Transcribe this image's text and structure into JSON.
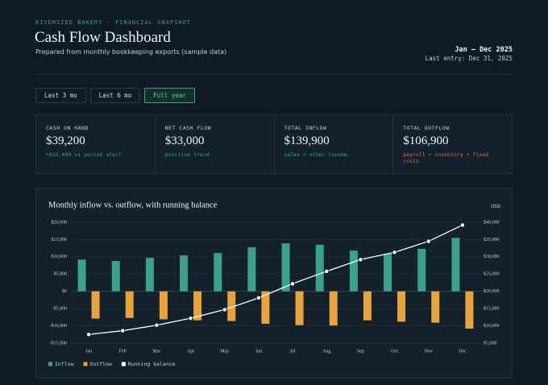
{
  "header": {
    "eyebrow": "RIVERSIDE BAKERY · FINANCIAL SNAPSHOT",
    "title": "Cash Flow Dashboard",
    "subtitle": "Prepared from monthly bookkeeping exports (sample data)",
    "period": "Jan — Dec 2025",
    "last_entry": "Last entry: Dec 31, 2025"
  },
  "range_buttons": [
    {
      "label": "Last 3 mo",
      "active": false
    },
    {
      "label": "Last 6 mo",
      "active": false
    },
    {
      "label": "Full year",
      "active": true
    }
  ],
  "kpis": [
    {
      "label": "CASH ON HAND",
      "value": "$39,200",
      "note": "+$33,000 vs period start",
      "tone": "positive"
    },
    {
      "label": "NET CASH FLOW",
      "value": "$33,000",
      "note": "positive trend",
      "tone": "positive"
    },
    {
      "label": "TOTAL INFLOW",
      "value": "$139,900",
      "note": "sales + other income",
      "tone": "positive"
    },
    {
      "label": "TOTAL OUTFLOW",
      "value": "$106,900",
      "note": "payroll + inventory + fixed costs",
      "tone": "negative"
    }
  ],
  "chart_data": {
    "type": "bar",
    "title": "Monthly inflow vs. outflow, with running balance",
    "unit_label": "USD",
    "categories": [
      "Jan",
      "Feb",
      "Mar",
      "Apr",
      "May",
      "Jun",
      "Jul",
      "Aug",
      "Sep",
      "Oct",
      "Nov",
      "Dec"
    ],
    "series": [
      {
        "name": "Inflow",
        "type": "bar",
        "color": "#3aa18a",
        "values": [
          9200,
          8800,
          9700,
          10400,
          11100,
          12800,
          13900,
          13500,
          11800,
          10900,
          12300,
          15500
        ]
      },
      {
        "name": "Outflow",
        "type": "bar",
        "color": "#e8a33d",
        "values": [
          -7900,
          -7700,
          -8100,
          -8400,
          -8600,
          -9400,
          -9800,
          -9900,
          -8400,
          -8800,
          -9100,
          -10800
        ]
      },
      {
        "name": "Running balance",
        "type": "line",
        "axis": "y2",
        "color": "#ffffff",
        "values": [
          7500,
          8600,
          10200,
          12200,
          14700,
          18100,
          22200,
          25800,
          29200,
          31300,
          34500,
          39200
        ]
      }
    ],
    "ylim": [
      -15000,
      20000
    ],
    "yticks": [
      {
        "value": 20000,
        "label": "$20,000"
      },
      {
        "value": 15000,
        "label": "$15,000"
      },
      {
        "value": 10000,
        "label": "$10,000"
      },
      {
        "value": 5000,
        "label": "$5,000"
      },
      {
        "value": 0,
        "label": "$0"
      },
      {
        "value": -5000,
        "label": "-$5,000"
      },
      {
        "value": -10000,
        "label": "-$10,000"
      },
      {
        "value": -15000,
        "label": "-$15,000"
      }
    ],
    "y2lim": [
      5000,
      40000
    ],
    "y2ticks": [
      {
        "value": 40000,
        "label": "$40,000"
      },
      {
        "value": 35000,
        "label": "$35,000"
      },
      {
        "value": 30000,
        "label": "$30,000"
      },
      {
        "value": 25000,
        "label": "$25,000"
      },
      {
        "value": 20000,
        "label": "$20,000"
      },
      {
        "value": 15000,
        "label": "$15,000"
      },
      {
        "value": 10000,
        "label": "$10,000"
      },
      {
        "value": 5000,
        "label": "$5,000"
      }
    ],
    "grid": true,
    "legend": "bottom-left"
  }
}
